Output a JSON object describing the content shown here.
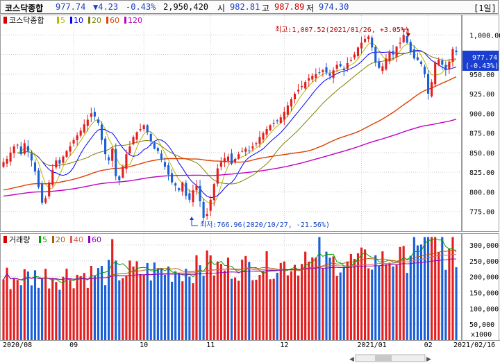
{
  "header": {
    "index_name": "코스닥종합",
    "last": "977.74",
    "change": "▼4.23",
    "change_pct": "-0.43%",
    "volume": "2,950,420",
    "open_label": "시",
    "open": "982.81",
    "high_label": "고",
    "high": "987.89",
    "low_label": "저",
    "low": "974.30",
    "period_button": "[1일]",
    "nav_prev_icon": "◀",
    "nav_next_icon": "▶"
  },
  "price_legend": {
    "title": "코스닥종합",
    "ma": [
      {
        "label": "5",
        "color": "#b8b800"
      },
      {
        "label": "10",
        "color": "#0000ff"
      },
      {
        "label": "20",
        "color": "#808000"
      },
      {
        "label": "60",
        "color": "#e04000"
      },
      {
        "label": "120",
        "color": "#c000c0"
      }
    ]
  },
  "volume_legend": {
    "title": "거래량",
    "ma": [
      {
        "label": "5",
        "color": "#00a000"
      },
      {
        "label": "20",
        "color": "#b06000"
      },
      {
        "label": "40",
        "color": "#e06060"
      },
      {
        "label": "60",
        "color": "#9000c0"
      }
    ]
  },
  "annotations": {
    "high": "최고:1,007.52(2021/01/26, +3.05%)",
    "low": "최저:766.96(2020/10/27, -21.56%)"
  },
  "price_badge": {
    "value": "977.74",
    "pct": "(-0.43%)"
  },
  "volume_unit": "x1000",
  "x_labels": [
    {
      "label": "2020/08",
      "index": 0
    },
    {
      "label": "09",
      "index": 20
    },
    {
      "label": "10",
      "index": 40
    },
    {
      "label": "11",
      "index": 59
    },
    {
      "label": "12",
      "index": 80
    },
    {
      "label": "2021/01",
      "index": 102
    },
    {
      "label": "02",
      "index": 121
    },
    {
      "label": "2021/02/16",
      "index": 129
    }
  ],
  "chart_data": {
    "type": "candlestick",
    "up_color": "#e41e1e",
    "down_color": "#1a5fd8",
    "price_ylim": [
      750,
      1025
    ],
    "price_ticks": [
      775,
      800,
      825,
      850,
      875,
      900,
      925,
      950,
      975,
      1000
    ],
    "volume_ylim": [
      0,
      335000
    ],
    "volume_ticks": [
      50000,
      100000,
      150000,
      200000,
      250000,
      300000
    ],
    "closes": [
      838,
      842,
      850,
      858,
      860,
      848,
      862,
      852,
      840,
      826,
      806,
      786,
      792,
      812,
      828,
      840,
      836,
      845,
      852,
      858,
      866,
      872,
      878,
      886,
      892,
      900,
      896,
      888,
      866,
      848,
      840,
      855,
      820,
      815,
      832,
      848,
      858,
      870,
      876,
      880,
      885,
      876,
      865,
      855,
      852,
      842,
      832,
      822,
      812,
      808,
      802,
      812,
      795,
      790,
      802,
      808,
      788,
      767,
      772,
      790,
      810,
      830,
      838,
      843,
      845,
      836,
      842,
      848,
      852,
      855,
      852,
      858,
      862,
      870,
      875,
      880,
      885,
      888,
      890,
      895,
      902,
      910,
      918,
      925,
      930,
      935,
      940,
      945,
      948,
      950,
      952,
      955,
      952,
      948,
      955,
      962,
      960,
      955,
      964,
      968,
      975,
      984,
      990,
      995,
      998,
      984,
      965,
      958,
      960,
      970,
      978,
      975,
      985,
      990,
      1000,
      990,
      978,
      970,
      968,
      963,
      950,
      925,
      940,
      965,
      968,
      962,
      955,
      966,
      982,
      978
    ]
  }
}
